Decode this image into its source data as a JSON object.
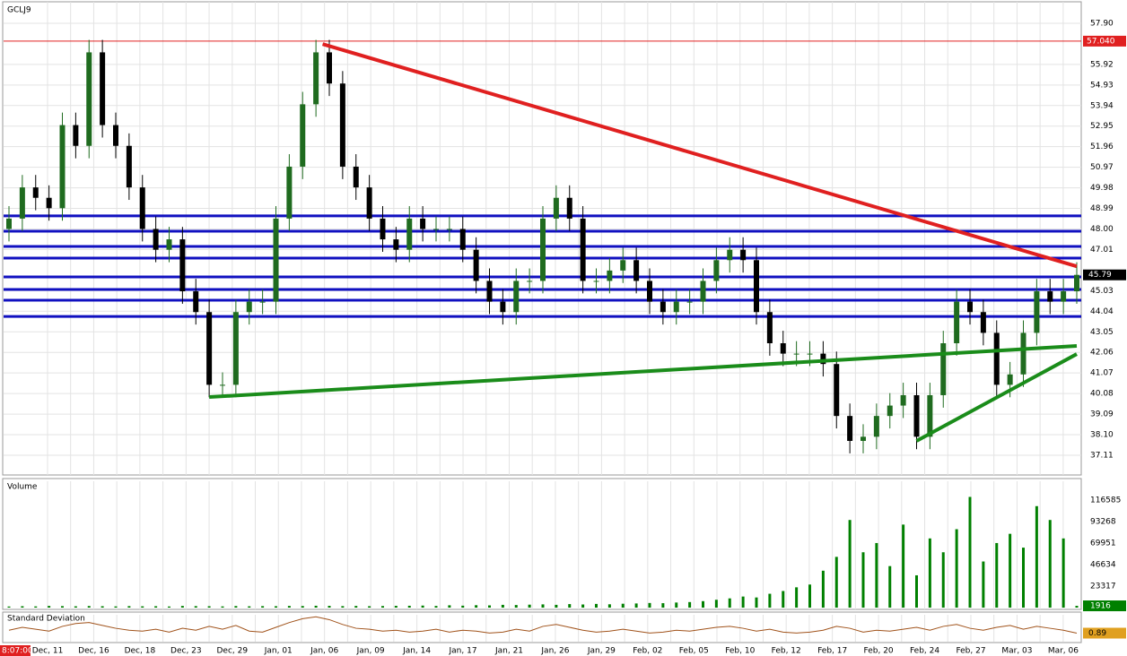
{
  "chart_data": [
    {
      "type": "candlestick",
      "title": "GCLJ9",
      "time_label": "8:07:00",
      "categories": [
        "Dec, 11",
        "Dec, 16",
        "Dec, 18",
        "Dec, 23",
        "Dec, 29",
        "Jan, 01",
        "Jan, 06",
        "Jan, 09",
        "Jan, 14",
        "Jan, 17",
        "Jan, 21",
        "Jan, 26",
        "Jan, 29",
        "Feb, 02",
        "Feb, 05",
        "Feb, 10",
        "Feb, 12",
        "Feb, 17",
        "Feb, 20",
        "Feb, 24",
        "Feb, 27",
        "Mar, 03",
        "Mar, 06"
      ],
      "open": [
        48.0,
        48.5,
        50.0,
        49.5,
        49.0,
        53.0,
        52.0,
        56.5,
        53.0,
        52.0,
        50.0,
        48.0,
        47.0,
        47.5,
        45.0,
        44.0,
        40.5,
        40.5,
        44.0,
        44.5,
        44.5,
        48.5,
        51.0,
        54.0,
        56.5,
        55.0,
        51.0,
        50.0,
        48.5,
        47.5,
        47.0,
        48.5,
        48.0,
        48.0,
        48.0,
        47.0,
        45.5,
        44.5,
        44.0,
        45.5,
        45.5,
        48.5,
        49.5,
        48.5,
        45.5,
        45.5,
        46.0,
        46.5,
        45.5,
        44.5,
        44.0,
        44.5,
        44.5,
        45.5,
        46.5,
        47.0,
        46.5,
        44.0,
        42.5,
        42.0,
        42.0,
        42.0,
        41.5,
        39.0,
        37.8,
        38.0,
        39.0,
        39.5,
        40.0,
        38.0,
        40.0,
        42.5,
        44.5,
        44.0,
        43.0,
        40.5,
        41.0,
        43.0,
        45.0,
        44.5,
        45.0
      ],
      "high": [
        49.1,
        50.6,
        50.6,
        50.1,
        53.6,
        53.6,
        57.1,
        57.1,
        53.6,
        52.6,
        50.6,
        48.6,
        48.1,
        48.1,
        45.6,
        44.6,
        41.1,
        44.6,
        45.1,
        45.1,
        49.1,
        51.6,
        54.6,
        57.1,
        57.1,
        55.6,
        51.6,
        50.6,
        49.1,
        48.1,
        49.1,
        49.1,
        48.6,
        48.6,
        48.6,
        47.6,
        46.1,
        45.1,
        46.1,
        46.1,
        49.1,
        50.1,
        50.1,
        49.1,
        46.1,
        46.6,
        47.1,
        47.1,
        46.1,
        45.1,
        45.1,
        45.1,
        46.1,
        47.1,
        47.6,
        47.6,
        47.1,
        44.6,
        43.1,
        42.6,
        42.6,
        42.6,
        42.1,
        39.6,
        38.6,
        39.6,
        40.1,
        40.6,
        40.6,
        40.6,
        43.1,
        45.1,
        45.1,
        44.6,
        43.6,
        41.6,
        43.6,
        45.6,
        45.6,
        45.6,
        46.4
      ],
      "low": [
        47.4,
        47.9,
        48.9,
        48.4,
        48.4,
        51.4,
        51.4,
        52.4,
        51.4,
        49.4,
        47.4,
        46.4,
        46.4,
        44.4,
        43.4,
        39.9,
        39.9,
        39.9,
        43.4,
        43.9,
        43.9,
        47.9,
        50.4,
        53.4,
        54.4,
        50.4,
        49.4,
        47.9,
        46.9,
        46.4,
        46.4,
        47.4,
        47.4,
        47.4,
        46.4,
        44.9,
        43.9,
        43.4,
        43.4,
        44.9,
        44.9,
        47.9,
        47.9,
        44.9,
        44.9,
        44.9,
        45.4,
        44.9,
        43.9,
        43.4,
        43.4,
        43.9,
        43.9,
        44.9,
        45.9,
        45.9,
        43.4,
        41.9,
        41.4,
        41.4,
        41.4,
        40.9,
        38.4,
        37.2,
        37.2,
        37.4,
        38.4,
        38.9,
        37.4,
        37.4,
        39.4,
        41.9,
        43.4,
        42.4,
        39.9,
        39.9,
        40.4,
        42.4,
        43.9,
        43.9,
        44.4
      ],
      "close": [
        48.5,
        50.0,
        49.5,
        49.0,
        53.0,
        52.0,
        56.5,
        53.0,
        52.0,
        50.0,
        48.0,
        47.0,
        47.5,
        45.0,
        44.0,
        40.5,
        40.5,
        44.0,
        44.5,
        44.5,
        48.5,
        51.0,
        54.0,
        56.5,
        55.0,
        51.0,
        50.0,
        48.5,
        47.5,
        47.0,
        48.5,
        48.0,
        48.0,
        48.0,
        47.0,
        45.5,
        44.5,
        44.0,
        45.5,
        45.5,
        48.5,
        49.5,
        48.5,
        45.5,
        45.5,
        46.0,
        46.5,
        45.5,
        44.5,
        44.0,
        44.5,
        44.5,
        45.5,
        46.5,
        47.0,
        46.5,
        44.0,
        42.5,
        42.0,
        42.0,
        42.0,
        41.5,
        39.0,
        37.8,
        38.0,
        39.0,
        39.5,
        40.0,
        38.0,
        40.0,
        42.5,
        44.5,
        44.0,
        43.0,
        40.5,
        41.0,
        43.0,
        45.0,
        44.5,
        45.0,
        45.79
      ],
      "last_label": "45.79",
      "up_color": "#1f6b1f",
      "down_color": "#000000",
      "ylim": [
        36.16,
        59.02
      ],
      "yticks": [
        {
          "value": 57.9,
          "label": "57.90"
        },
        55.92,
        54.93,
        53.94,
        52.95,
        51.96,
        50.97,
        49.98,
        48.99,
        {
          "value": 48,
          "label": "48.00"
        },
        47.01,
        45.03,
        44.04,
        43.05,
        42.06,
        41.07,
        40.08,
        39.09,
        {
          "value": 38.1,
          "label": "38.10"
        },
        37.11
      ],
      "grid": true,
      "ref_line": {
        "value": 57.04,
        "label": "57.040",
        "color": "#e02020"
      },
      "hlines": {
        "color": "#1010c0",
        "values": [
          48.63,
          47.89,
          47.16,
          46.6,
          45.69,
          45.09,
          44.57,
          43.79
        ]
      },
      "trendlines": [
        {
          "color": "#e02020",
          "points": [
            [
              23.5,
              56.9
            ],
            [
              80.0,
              46.2
            ]
          ]
        },
        {
          "color": "#1a8c1a",
          "points": [
            [
              15.0,
              39.91
            ],
            [
              80.0,
              42.37
            ]
          ]
        },
        {
          "color": "#1a8c1a",
          "points": [
            [
              68.0,
              37.8
            ],
            [
              80.0,
              41.98
            ]
          ]
        }
      ]
    },
    {
      "type": "bar",
      "title": "Volume",
      "color": "#008000",
      "last_label": "1916",
      "values": [
        1200,
        1500,
        1300,
        1800,
        1600,
        1400,
        1700,
        1500,
        1300,
        1600,
        1400,
        1500,
        1200,
        1800,
        1600,
        1500,
        1300,
        1700,
        1400,
        1600,
        1500,
        1800,
        1700,
        2000,
        1900,
        1600,
        1800,
        1500,
        1700,
        1900,
        2000,
        2200,
        1800,
        2500,
        2100,
        2600,
        2400,
        3000,
        2800,
        3200,
        3500,
        3000,
        3800,
        3400,
        4000,
        3600,
        4200,
        4500,
        5000,
        4800,
        5500,
        6000,
        7000,
        8500,
        10000,
        12000,
        11000,
        15000,
        18000,
        22000,
        25000,
        40000,
        55000,
        95000,
        60000,
        70000,
        45000,
        90000,
        35000,
        75000,
        60000,
        85000,
        120000,
        50000,
        70000,
        80000,
        65000,
        110000,
        95000,
        75000,
        1916
      ],
      "ylim": [
        0,
        138929
      ],
      "yticks": [
        116585,
        93268,
        69951,
        46634,
        23317
      ]
    },
    {
      "type": "line",
      "title": "Standard Deviation",
      "color": "#a0521a",
      "last_label": "0.89",
      "values": [
        1.2,
        1.5,
        1.3,
        1.1,
        1.6,
        1.9,
        2.0,
        1.7,
        1.4,
        1.2,
        1.1,
        1.3,
        1.0,
        1.4,
        1.2,
        1.6,
        1.3,
        1.7,
        1.1,
        1.0,
        1.5,
        2.0,
        2.4,
        2.6,
        2.3,
        1.8,
        1.4,
        1.3,
        1.1,
        1.2,
        1.0,
        1.1,
        1.3,
        1.0,
        1.2,
        1.1,
        0.9,
        1.0,
        1.3,
        1.1,
        1.6,
        1.8,
        1.5,
        1.2,
        1.0,
        1.1,
        1.3,
        1.1,
        0.9,
        1.0,
        1.2,
        1.1,
        1.3,
        1.5,
        1.6,
        1.4,
        1.1,
        1.3,
        1.0,
        0.9,
        1.0,
        1.2,
        1.6,
        1.4,
        1.0,
        1.2,
        1.1,
        1.3,
        1.5,
        1.2,
        1.6,
        1.8,
        1.4,
        1.2,
        1.5,
        1.7,
        1.3,
        1.6,
        1.4,
        1.2,
        0.89
      ],
      "ylim": [
        0,
        3
      ]
    }
  ]
}
